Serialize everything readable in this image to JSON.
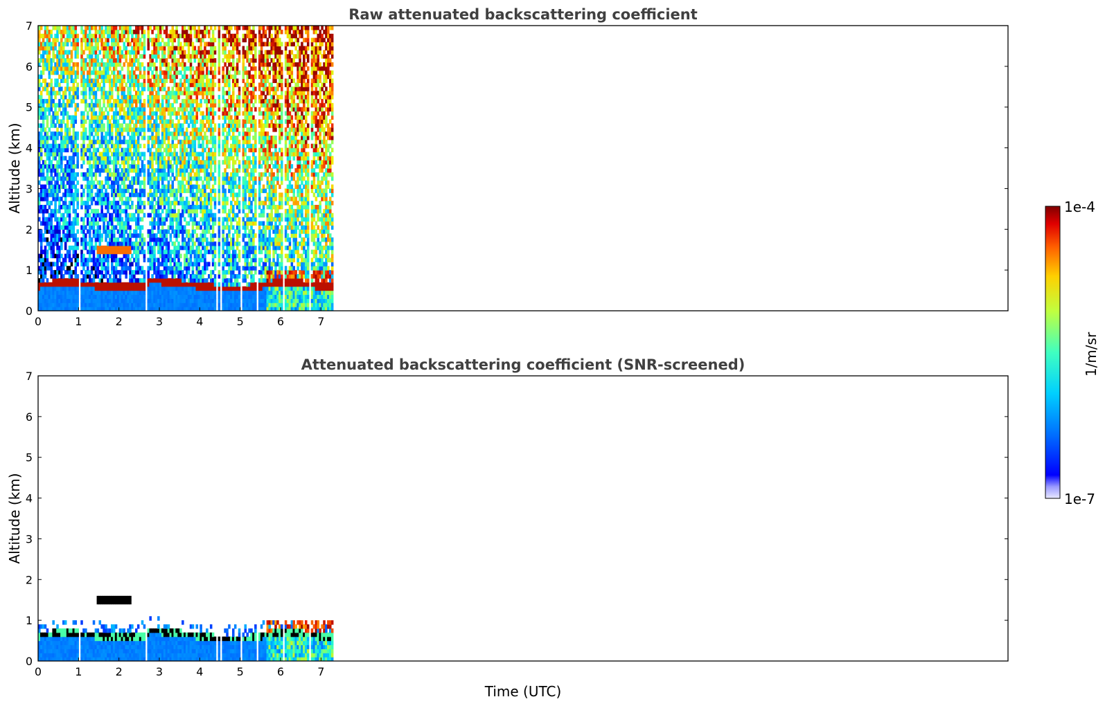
{
  "chart_data": [
    {
      "type": "heatmap",
      "title": "Raw attenuated backscattering coefficient",
      "xlabel": "",
      "ylabel": "Altitude (km)",
      "xlim": [
        0,
        24
      ],
      "ylim": [
        0,
        7
      ],
      "xticks": [
        "0",
        "1",
        "2",
        "3",
        "4",
        "5",
        "6",
        "7"
      ],
      "yticks": [
        "0",
        "1",
        "2",
        "3",
        "4",
        "5",
        "6",
        "7"
      ],
      "data_extent_x": [
        0,
        7.3
      ],
      "screened": false,
      "features": [
        {
          "name": "boundary-layer",
          "x": [
            0,
            7.3
          ],
          "y": [
            0,
            0.65
          ]
        },
        {
          "name": "aerosol-top",
          "x": [
            0,
            7.3
          ],
          "y": [
            0.45,
            0.8
          ]
        },
        {
          "name": "cloud-low",
          "x": [
            5.6,
            7.3
          ],
          "y": [
            0,
            1.0
          ]
        },
        {
          "name": "cloud-elevated",
          "x": [
            1.4,
            2.3
          ],
          "y": [
            1.35,
            1.6
          ]
        }
      ]
    },
    {
      "type": "heatmap",
      "title": "Attenuated backscattering coefficient (SNR-screened)",
      "xlabel": "Time (UTC)",
      "ylabel": "Altitude (km)",
      "xlim": [
        0,
        24
      ],
      "ylim": [
        0,
        7
      ],
      "xticks": [
        "0",
        "1",
        "2",
        "3",
        "4",
        "5",
        "6",
        "7"
      ],
      "yticks": [
        "0",
        "1",
        "2",
        "3",
        "4",
        "5",
        "6",
        "7"
      ],
      "data_extent_x": [
        0,
        7.3
      ],
      "screened": true,
      "features": [
        {
          "name": "boundary-layer",
          "x": [
            0,
            7.3
          ],
          "y": [
            0,
            0.65
          ]
        },
        {
          "name": "aerosol-top",
          "x": [
            0,
            7.3
          ],
          "y": [
            0.45,
            0.9
          ]
        },
        {
          "name": "cloud-low",
          "x": [
            5.6,
            7.3
          ],
          "y": [
            0,
            1.0
          ]
        },
        {
          "name": "cloud-elevated",
          "x": [
            1.4,
            2.3
          ],
          "y": [
            1.35,
            1.6
          ]
        }
      ]
    }
  ],
  "colorbar": {
    "label": "1/m/sr",
    "min_label": "1e-7",
    "max_label": "1e-4",
    "min": 1e-07,
    "max": 0.0001,
    "scale": "log",
    "colormap": "jet"
  }
}
